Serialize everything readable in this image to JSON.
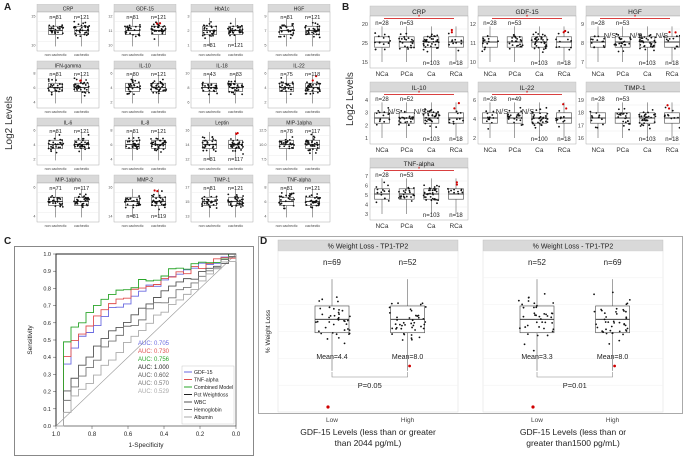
{
  "figure": {
    "panel_labels": [
      "A",
      "B",
      "C",
      "D"
    ],
    "a_ylabel": "Log2 Levels",
    "b_ylabel": "Log2 Levels"
  },
  "panel_a": {
    "subplots": [
      {
        "title": "CRP",
        "categories": [
          "non cachectic",
          "cachectic"
        ],
        "n": [
          "n=81",
          "n=121"
        ],
        "n_pos": "top",
        "yticks": [
          "10",
          "15"
        ]
      },
      {
        "title": "GDF-15",
        "categories": [
          "non cachectic",
          "cachectic"
        ],
        "n": [
          "n=81",
          "n=121"
        ],
        "n_pos": "top",
        "yticks": [
          "10",
          "11",
          "12"
        ]
      },
      {
        "title": "HbA1c",
        "categories": [
          "non cachectic",
          "cachectic"
        ],
        "n": [
          "n=81",
          "n=121"
        ],
        "n_pos": "bottom",
        "yticks": [
          "1",
          "2",
          "3"
        ]
      },
      {
        "title": "HGF",
        "categories": [
          "non cachectic",
          "cachectic"
        ],
        "n": [
          "n=81",
          "n=121"
        ],
        "n_pos": "top",
        "yticks": [
          "5",
          "7",
          "9"
        ]
      },
      {
        "title": "IFN-gamma",
        "categories": [
          "non cachectic",
          "cachectic"
        ],
        "n": [
          "n=81",
          "n=121"
        ],
        "n_pos": "top",
        "yticks": [
          "4",
          "6",
          "8"
        ]
      },
      {
        "title": "IL-10",
        "categories": [
          "non cachectic",
          "cachectic"
        ],
        "n": [
          "n=80",
          "n=121"
        ],
        "n_pos": "top",
        "yticks": [
          "2",
          "4",
          "6"
        ]
      },
      {
        "title": "IL-18",
        "categories": [
          "non cachectic",
          "cachectic"
        ],
        "n": [
          "n=43",
          "n=83"
        ],
        "n_pos": "top",
        "yticks": [
          "6",
          "8",
          "10"
        ]
      },
      {
        "title": "IL-22",
        "categories": [
          "non cachectic",
          "cachectic"
        ],
        "n": [
          "n=75",
          "n=118"
        ],
        "n_pos": "top",
        "yticks": [
          "2",
          "4",
          "6"
        ]
      },
      {
        "title": "IL-6",
        "categories": [
          "non cachectic",
          "cachectic"
        ],
        "n": [
          "n=81",
          "n=121"
        ],
        "n_pos": "top",
        "yticks": [
          "2",
          "4",
          "6"
        ]
      },
      {
        "title": "IL-8",
        "categories": [
          "non cachectic",
          "cachectic"
        ],
        "n": [
          "n=81",
          "n=121"
        ],
        "n_pos": "top",
        "yticks": [
          "4",
          "6",
          "8"
        ]
      },
      {
        "title": "Leptin",
        "categories": [
          "non cachectic",
          "cachectic"
        ],
        "n": [
          "n=81",
          "n=117"
        ],
        "n_pos": "bottom",
        "yticks": [
          "12",
          "14",
          "16"
        ]
      },
      {
        "title": "MIP-1alpha",
        "categories": [
          "non cachectic",
          "cachectic"
        ],
        "n": [
          "n=78",
          "n=117"
        ],
        "n_pos": "top",
        "yticks": [
          "7.5",
          "10.0",
          "12.5"
        ]
      },
      {
        "title": "MIP-1alpha",
        "categories": [
          "non cachectic",
          "cachectic"
        ],
        "n": [
          "n=71",
          "n=117"
        ],
        "n_pos": "top",
        "yticks": [
          "4",
          "6"
        ]
      },
      {
        "title": "MMP-2",
        "categories": [
          "non cachectic",
          "cachectic"
        ],
        "n": [
          "n=81",
          "n=119"
        ],
        "n_pos": "bottom",
        "yticks": [
          "14",
          "16"
        ]
      },
      {
        "title": "TIMP-1",
        "categories": [
          "non cachectic",
          "cachectic"
        ],
        "n": [
          "n=81",
          "n=121"
        ],
        "n_pos": "top",
        "yticks": [
          "13",
          "15",
          "17"
        ]
      },
      {
        "title": "TNF-alpha",
        "categories": [
          "non cachectic",
          "cachectic"
        ],
        "n": [
          "n=81",
          "n=121"
        ],
        "n_pos": "top",
        "yticks": [
          "4",
          "6",
          "8"
        ]
      }
    ]
  },
  "panel_b": {
    "subplots": [
      {
        "title": "CRP",
        "categories": [
          "NCa",
          "PCa",
          "Ca",
          "RCa"
        ],
        "n": [
          "n=28",
          "n=53",
          "n=103",
          "n=18"
        ],
        "yticks": [
          "20",
          "25",
          "15"
        ],
        "ns": [],
        "sig": true
      },
      {
        "title": "GDF-15",
        "categories": [
          "NCa",
          "PCa",
          "Ca",
          "RCa"
        ],
        "n": [
          "n=28",
          "n=53",
          "n=103",
          "n=18"
        ],
        "yticks": [
          "12",
          "11",
          "10"
        ],
        "ns": [],
        "sig": true
      },
      {
        "title": "HGF",
        "categories": [
          "NCa",
          "PCa",
          "Ca",
          "RCa"
        ],
        "n": [
          "n=28",
          "n=53",
          "n=103",
          "n=18"
        ],
        "yticks": [
          "9",
          "8",
          "7"
        ],
        "ns": [
          "N/S",
          "N/S",
          "N/S"
        ],
        "sig": true
      },
      {
        "title": "IL-10",
        "categories": [
          "NCa",
          "PCa",
          "Ca",
          "RCa"
        ],
        "n": [
          "n=28",
          "n=52",
          "n=103",
          "n=18"
        ],
        "yticks": [
          "4",
          "3",
          "2",
          "1"
        ],
        "ns": [
          "N/S",
          "N/S"
        ],
        "sig": true
      },
      {
        "title": "IL-22",
        "categories": [
          "NCa",
          "PCa",
          "Ca",
          "RCa"
        ],
        "n": [
          "n=28",
          "n=49",
          "n=100",
          "n=18"
        ],
        "yticks": [
          "6",
          "4",
          "2"
        ],
        "ns": [
          "N/S",
          "N/S"
        ],
        "sig": true
      },
      {
        "title": "TIMP-1",
        "categories": [
          "NCa",
          "PCa",
          "Ca",
          "RCa"
        ],
        "n": [
          "n=28",
          "n=53",
          "n=103",
          "n=18"
        ],
        "yticks": [
          "19",
          "18",
          "17",
          "16"
        ],
        "ns": [],
        "sig": false
      },
      {
        "title": "TNF-alpha",
        "categories": [
          "NCa",
          "PCa",
          "Ca",
          "RCa"
        ],
        "n": [
          "n=28",
          "n=53",
          "n=103",
          "n=18"
        ],
        "yticks": [
          "7",
          "6",
          "5",
          "4",
          "3"
        ],
        "ns": [],
        "sig": true
      }
    ]
  },
  "chart_data": [
    {
      "type": "line",
      "xlabel": "1-Specificity",
      "ylabel": "Sensitivity",
      "x_ticks": [
        "1.0",
        "0.8",
        "0.6",
        "0.4",
        "0.2",
        "0.0"
      ],
      "y_ticks": [
        "0.0",
        "0.1",
        "0.2",
        "0.3",
        "0.4",
        "0.5",
        "0.6",
        "0.7",
        "0.8",
        "0.9",
        "1.0"
      ],
      "auc_labels": [
        {
          "text": "AUC: 0.705",
          "color": "#6a6ae0"
        },
        {
          "text": "AUC: 0.730",
          "color": "#e05050"
        },
        {
          "text": "AUC: 0.756",
          "color": "#2aa52a"
        },
        {
          "text": "AUC: 1.000",
          "color": "#222222"
        },
        {
          "text": "AUC: 0.602",
          "color": "#555555"
        },
        {
          "text": "AUC: 0.570",
          "color": "#777777"
        },
        {
          "text": "AUC: 0.529",
          "color": "#aaaaaa"
        }
      ],
      "series": [
        {
          "name": "GDF-15",
          "color": "#6a6ae0"
        },
        {
          "name": "TNF-alpha",
          "color": "#e05050"
        },
        {
          "name": "Combined Model",
          "color": "#2aa52a"
        },
        {
          "name": "Pct Weightloss",
          "color": "#222222"
        },
        {
          "name": "WBC",
          "color": "#555555"
        },
        {
          "name": "Hemoglobin",
          "color": "#777777"
        },
        {
          "name": "Albumin",
          "color": "#aaaaaa"
        }
      ]
    },
    {
      "type": "box",
      "title": "% Weight Loss - TP1-TP2",
      "ylabel": "% Weight Loss",
      "categories": [
        "Low",
        "High"
      ],
      "n": [
        "n=69",
        "n=52"
      ],
      "means": [
        "Mean=4.4",
        "Mean=8.0"
      ],
      "p": "P=0.05",
      "xlabel": "GDF-15 Levels (less than or greater than 2044 pg/mL)"
    },
    {
      "type": "box",
      "title": "% Weight Loss - TP1-TP2",
      "categories": [
        "Low",
        "High"
      ],
      "n": [
        "n=52",
        "n=69"
      ],
      "means": [
        "Mean=3.3",
        "Mean=8.0"
      ],
      "p": "P=0.01",
      "xlabel": "GDF-15 Levels (less than or greater than1500 pg/mL)"
    }
  ],
  "colors": {
    "strip": "#d9d9d9",
    "grid": "#e6e6e6",
    "dot": "#111111",
    "outlier": "#d00000",
    "sigline": "#cc0000"
  }
}
